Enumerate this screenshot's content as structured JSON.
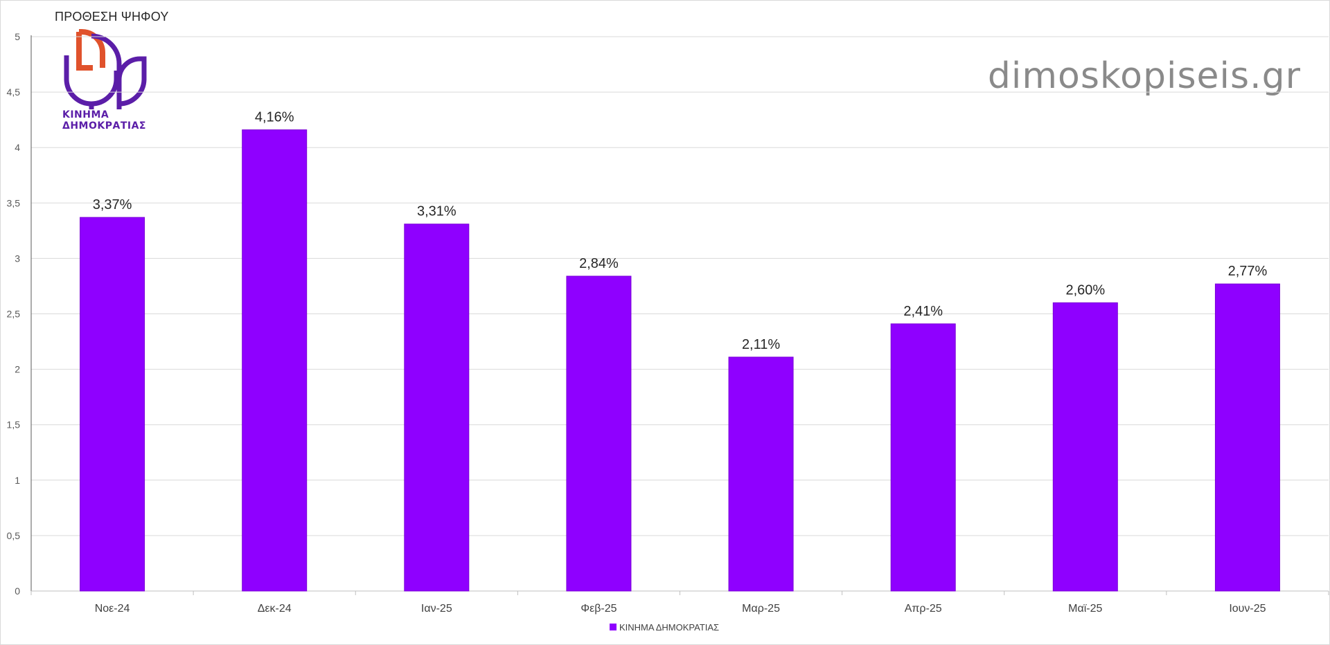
{
  "chart_data": {
    "type": "bar",
    "title": "ΠΡΟΘΕΣΗ ΨΗΦΟΥ",
    "categories": [
      "Νοε-24",
      "Δεκ-24",
      "Ιαν-25",
      "Φεβ-25",
      "Μαρ-25",
      "Απρ-25",
      "Μαϊ-25",
      "Ιουν-25"
    ],
    "series": [
      {
        "name": "ΚΙΝΗΜΑ ΔΗΜΟΚΡΑΤΙΑΣ",
        "values": [
          3.37,
          4.16,
          3.31,
          2.84,
          2.11,
          2.41,
          2.6,
          2.77
        ],
        "labels": [
          "3,37%",
          "4,16%",
          "3,31%",
          "2,84%",
          "2,11%",
          "2,41%",
          "2,60%",
          "2,77%"
        ],
        "color": "#8f00ff"
      }
    ],
    "yticks": [
      "0",
      "0,5",
      "1",
      "1,5",
      "2",
      "2,5",
      "3",
      "3,5",
      "4",
      "4,5",
      "5"
    ],
    "ylim": [
      0,
      5
    ],
    "grid": true,
    "legend_position": "bottom-center"
  },
  "logo": {
    "line1": "ΚΙΝΗΜΑ",
    "line2": "ΔΗΜΟΚΡΑΤΙΑΣ",
    "colors": {
      "orange": "#e0522c",
      "purple": "#5b1ea8"
    }
  },
  "watermark": "dimoskopiseis.gr",
  "colors": {
    "bar": "#8f00ff",
    "bar_border": "#7a00d6",
    "grid": "#d9d9d9"
  }
}
